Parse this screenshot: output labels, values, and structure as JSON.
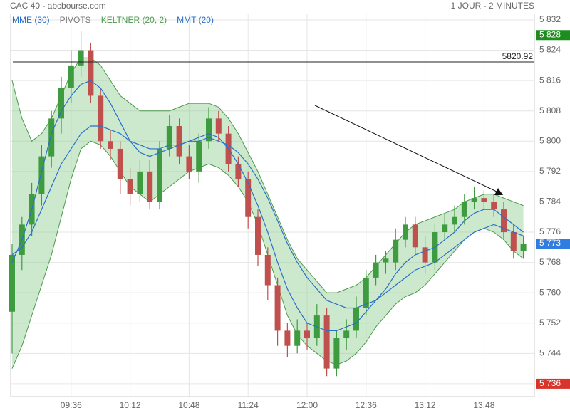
{
  "chart_data": {
    "type": "candlestick",
    "title": "CAC 40 - abcbourse.com",
    "subtitle": "1 JOUR - 2 MINUTES",
    "categories": [
      null,
      null,
      null,
      null,
      null,
      null,
      "09:36",
      null,
      null,
      null,
      null,
      null,
      "10:12",
      null,
      null,
      null,
      null,
      null,
      "10:48",
      null,
      null,
      null,
      null,
      null,
      "11:24",
      null,
      null,
      null,
      null,
      null,
      "12:00",
      null,
      null,
      null,
      null,
      null,
      "12:36",
      null,
      null,
      null,
      null,
      null,
      "13:12",
      null,
      null,
      null,
      null,
      null,
      "13:48",
      null,
      null,
      null,
      null
    ],
    "open": [
      5755,
      5770,
      5778,
      5786,
      5796,
      5806,
      5814,
      5820,
      5824,
      5812,
      5800,
      5798,
      5790,
      5786,
      5792,
      5784,
      5798,
      5804,
      5796,
      5792,
      5800,
      5806,
      5802,
      5794,
      5790,
      5780,
      5770,
      5762,
      5750,
      5746,
      5750,
      5748,
      5754,
      5740,
      5748,
      5750,
      5756,
      5764,
      5768,
      5768,
      5774,
      5778,
      5772,
      5768,
      5776,
      5778,
      5780,
      5784,
      5785,
      5784,
      5782,
      5776,
      5771
    ],
    "high": [
      5773,
      5780,
      5789,
      5799,
      5808,
      5817,
      5824,
      5829,
      5826,
      5814,
      5803,
      5800,
      5793,
      5795,
      5795,
      5800,
      5807,
      5806,
      5799,
      5802,
      5809,
      5808,
      5804,
      5796,
      5792,
      5782,
      5772,
      5764,
      5752,
      5753,
      5752,
      5757,
      5756,
      5750,
      5753,
      5759,
      5766,
      5770,
      5771,
      5777,
      5780,
      5780,
      5775,
      5778,
      5781,
      5783,
      5786,
      5788,
      5787,
      5786,
      5784,
      5778,
      5775
    ],
    "low": [
      5744,
      5766,
      5775,
      5783,
      5793,
      5802,
      5810,
      5817,
      5810,
      5798,
      5795,
      5786,
      5783,
      5784,
      5782,
      5782,
      5796,
      5794,
      5790,
      5789,
      5798,
      5800,
      5792,
      5788,
      5777,
      5767,
      5758,
      5746,
      5743,
      5744,
      5745,
      5746,
      5738,
      5738,
      5745,
      5748,
      5754,
      5762,
      5765,
      5766,
      5772,
      5770,
      5765,
      5766,
      5774,
      5776,
      5778,
      5782,
      5782,
      5780,
      5774,
      5769,
      5769
    ],
    "close": [
      5770,
      5778,
      5786,
      5796,
      5806,
      5814,
      5820,
      5824,
      5812,
      5800,
      5798,
      5790,
      5786,
      5792,
      5784,
      5798,
      5804,
      5796,
      5792,
      5800,
      5806,
      5802,
      5794,
      5790,
      5780,
      5770,
      5762,
      5750,
      5746,
      5750,
      5748,
      5754,
      5740,
      5748,
      5750,
      5756,
      5764,
      5768,
      5769,
      5774,
      5778,
      5772,
      5768,
      5776,
      5778,
      5780,
      5784,
      5785,
      5784,
      5782,
      5776,
      5771,
      5773
    ],
    "up_color": "#3f9b3f",
    "down_color": "#c0504d",
    "legend": [
      {
        "name": "MME (30)",
        "color": "#2a6fc9"
      },
      {
        "name": "PIVOTS",
        "color": "#777777"
      },
      {
        "name": "KELTNER (20, 2)",
        "color": "#4a9a4a"
      },
      {
        "name": "MMT (20)",
        "color": "#2a6fc9"
      }
    ],
    "mme": [
      5770,
      5772,
      5776,
      5782,
      5788,
      5794,
      5798,
      5802,
      5804,
      5804,
      5803,
      5802,
      5800,
      5799,
      5798,
      5798,
      5799,
      5799,
      5800,
      5800,
      5801,
      5800,
      5799,
      5797,
      5794,
      5790,
      5785,
      5779,
      5773,
      5768,
      5764,
      5761,
      5758,
      5757,
      5756,
      5756,
      5757,
      5758,
      5760,
      5762,
      5764,
      5766,
      5767,
      5768,
      5770,
      5772,
      5774,
      5776,
      5777,
      5778,
      5777,
      5776,
      5775
    ],
    "mmt": [
      5768,
      5774,
      5782,
      5792,
      5802,
      5808,
      5812,
      5815,
      5816,
      5814,
      5810,
      5805,
      5800,
      5797,
      5796,
      5797,
      5798,
      5799,
      5800,
      5801,
      5802,
      5801,
      5798,
      5794,
      5789,
      5783,
      5776,
      5768,
      5761,
      5756,
      5752,
      5751,
      5750,
      5750,
      5751,
      5752,
      5755,
      5758,
      5761,
      5765,
      5768,
      5770,
      5771,
      5772,
      5774,
      5776,
      5779,
      5781,
      5782,
      5782,
      5780,
      5778,
      5776
    ],
    "keltner_upper": [
      5816,
      5806,
      5800,
      5802,
      5806,
      5812,
      5818,
      5822,
      5822,
      5820,
      5816,
      5812,
      5810,
      5808,
      5808,
      5808,
      5808,
      5809,
      5810,
      5810,
      5810,
      5809,
      5806,
      5802,
      5797,
      5792,
      5786,
      5780,
      5774,
      5769,
      5766,
      5763,
      5760,
      5760,
      5761,
      5762,
      5764,
      5767,
      5770,
      5773,
      5776,
      5778,
      5779,
      5780,
      5781,
      5782,
      5784,
      5785,
      5786,
      5786,
      5785,
      5784,
      5783
    ],
    "keltner_lower": [
      5740,
      5746,
      5754,
      5762,
      5770,
      5780,
      5790,
      5798,
      5800,
      5799,
      5796,
      5792,
      5788,
      5786,
      5784,
      5786,
      5788,
      5790,
      5792,
      5793,
      5794,
      5793,
      5791,
      5788,
      5784,
      5778,
      5770,
      5762,
      5754,
      5749,
      5746,
      5744,
      5742,
      5741,
      5742,
      5744,
      5747,
      5751,
      5754,
      5757,
      5759,
      5760,
      5762,
      5765,
      5768,
      5771,
      5774,
      5776,
      5777,
      5776,
      5774,
      5771,
      5769
    ],
    "pivot": 5784,
    "pivot_color": "#c0392b",
    "hline": 5820.92,
    "tags": [
      {
        "value": 5828,
        "label": "5 828",
        "color": "#1e8c1e"
      },
      {
        "value": 5773,
        "label": "5 773",
        "color": "#2f7de1"
      },
      {
        "value": 5736,
        "label": "5 736",
        "color": "#d9342b"
      }
    ],
    "ylim": [
      5732.6,
      5833.5
    ],
    "yticks": [
      {
        "value": 5736,
        "label": "5 736"
      },
      {
        "value": 5744,
        "label": "5 744"
      },
      {
        "value": 5752,
        "label": "5 752"
      },
      {
        "value": 5760,
        "label": "5 760"
      },
      {
        "value": 5768,
        "label": "5 768"
      },
      {
        "value": 5776,
        "label": "5 776"
      },
      {
        "value": 5784,
        "label": "5 784"
      },
      {
        "value": 5792,
        "label": "5 792"
      },
      {
        "value": 5800,
        "label": "5 800"
      },
      {
        "value": 5808,
        "label": "5 808"
      },
      {
        "value": 5816,
        "label": "5 816"
      },
      {
        "value": 5824,
        "label": "5 824"
      },
      {
        "value": 5832,
        "label": "5 832"
      }
    ],
    "grid": true
  }
}
